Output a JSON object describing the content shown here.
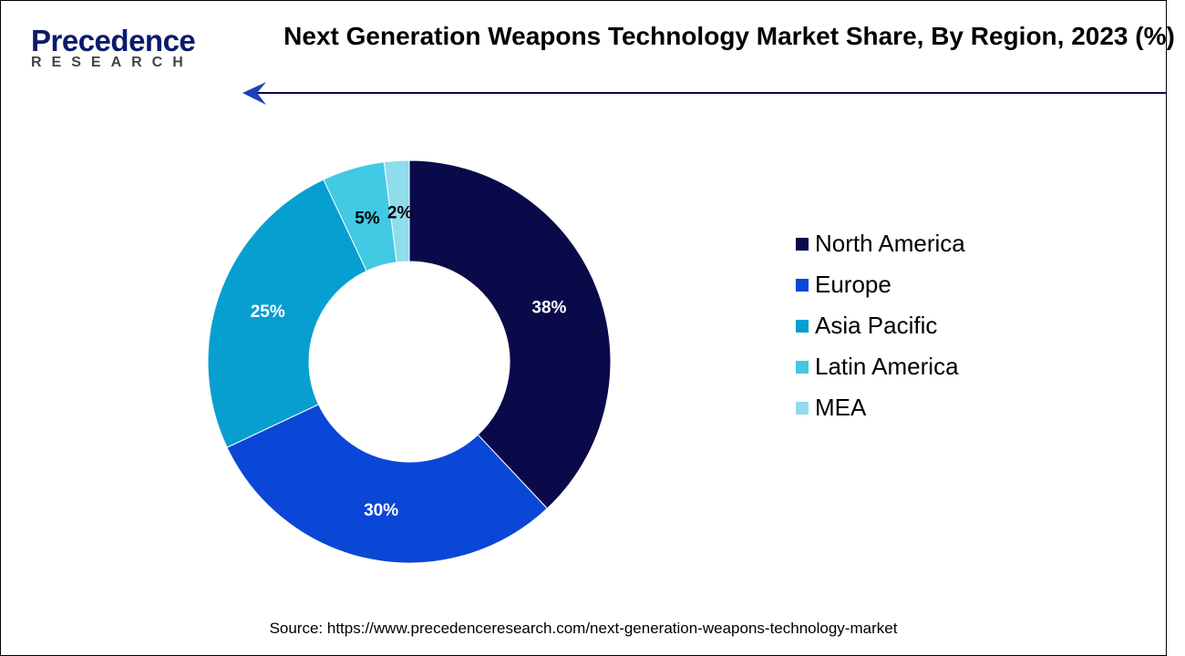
{
  "logo": {
    "text_main": "Precedence",
    "text_sub": "RESEARCH"
  },
  "chart_data": {
    "type": "pie",
    "variant": "donut",
    "title": "Next Generation Weapons Technology Market Share, By Region, 2023 (%)",
    "categories": [
      "North America",
      "Europe",
      "Asia Pacific",
      "Latin America",
      "MEA"
    ],
    "values": [
      38,
      30,
      25,
      5,
      2
    ],
    "data_labels": [
      "38%",
      "30%",
      "25%",
      "5%",
      "2%"
    ],
    "colors": [
      "#0a0a4a",
      "#0a47d6",
      "#069fd0",
      "#42c9e3",
      "#8fdcec"
    ],
    "legend_position": "right",
    "start_angle": "top, clockwise"
  },
  "source": "Source: https://www.precedenceresearch.com/next-generation-weapons-technology-market"
}
